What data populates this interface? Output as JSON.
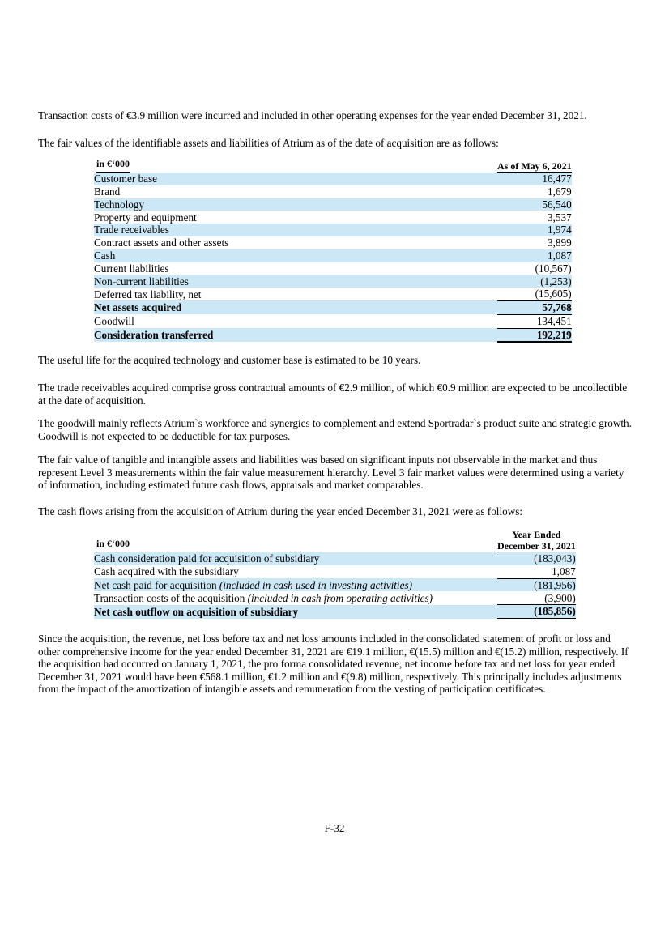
{
  "colors": {
    "highlight": "#cce7f5",
    "text": "#000000",
    "rule": "#000000"
  },
  "paragraphs": [
    "Transaction costs of €3.9 million were incurred and included in other operating expenses for the year ended December 31, 2021.",
    "The fair values of the identifiable assets and liabilities of Atrium as of the date of acquisition are as follows:",
    "The useful life for the acquired technology and customer base is estimated to be 10 years.",
    "The trade receivables acquired comprise gross contractual amounts of €2.9 million, of which €0.9 million are expected to be uncollectible at the date of acquisition.",
    "The goodwill mainly reflects Atrium`s workforce and synergies to complement and extend Sportradar`s product suite and strategic growth. Goodwill is not expected to be deductible for tax purposes.",
    "The fair value of tangible and intangible assets and liabilities was based on significant inputs not observable in the market and thus represent Level 3 measurements within the fair value measurement hierarchy. Level 3 fair market values were determined using a variety of information, including estimated future cash flows, appraisals and market comparables.",
    "The cash flows arising from the acquisition of Atrium during the year ended December 31, 2021 were as follows:",
    "Since the acquisition, the revenue, net loss before tax and net loss amounts included in the consolidated statement of profit or loss and other comprehensive income for the year ended December 31, 2021 are €19.1 million, €(15.5) million and €(15.2) million, respectively. If the acquisition had occurred on January 1, 2021, the pro forma consolidated revenue, net income before tax and net loss for year ended December 31, 2021 would have been €568.1 million, €1.2 million and €(9.8) million, respectively. This principally includes adjustments from the impact of the amortization of intangible assets and remuneration from the vesting of participation certificates."
  ],
  "fair_value_table": {
    "header": {
      "label": "in €‘000",
      "value": "As of May 6, 2021"
    },
    "rows": [
      {
        "label": "Customer base",
        "value": "16,477",
        "highlight": true
      },
      {
        "label": "Brand",
        "value": "1,679"
      },
      {
        "label": "Technology",
        "value": "56,540",
        "highlight": true
      },
      {
        "label": "Property and equipment",
        "value": "3,537"
      },
      {
        "label": "Trade receivables",
        "value": "1,974",
        "highlight": true
      },
      {
        "label": "Contract assets and other assets",
        "value": "3,899"
      },
      {
        "label": "Cash",
        "value": "1,087",
        "highlight": true
      },
      {
        "label": "Current liabilities",
        "value": "(10,567)"
      },
      {
        "label": "Non-current liabilities",
        "value": "(1,253)",
        "highlight": true
      },
      {
        "label": "Deferred tax liability, net",
        "value": "(15,605)",
        "border": "single"
      },
      {
        "label": "Net assets acquired",
        "value": "57,768",
        "highlight": true,
        "bold": true,
        "border": "single"
      },
      {
        "label": "Goodwill",
        "value": "134,451",
        "border": "single"
      },
      {
        "label": "Consideration transferred",
        "value": "192,219",
        "highlight": true,
        "bold": true,
        "border": "thick"
      }
    ]
  },
  "cash_flow_table": {
    "header": {
      "label": "in €‘000",
      "value_line1": "Year Ended",
      "value_line2": "December 31, 2021"
    },
    "rows": [
      {
        "label": "Cash consideration paid for acquisition of subsidiary",
        "value": "(183,043)",
        "highlight": true
      },
      {
        "label": "Cash acquired with the subsidiary",
        "value": "1,087",
        "border": "single"
      },
      {
        "label": "Net cash paid for acquisition ",
        "label_italic": "(included in cash used in investing activities)",
        "value": "(181,956)",
        "highlight": true
      },
      {
        "label": "Transaction costs of the acquisition ",
        "label_italic": "(included in cash from operating activities)",
        "value": "(3,900)",
        "border": "single"
      },
      {
        "label": "Net cash outflow on acquisition of subsidiary",
        "value": "(185,856)",
        "highlight": true,
        "bold": true,
        "border": "double"
      }
    ]
  },
  "footer": {
    "page_number": "F-32"
  }
}
